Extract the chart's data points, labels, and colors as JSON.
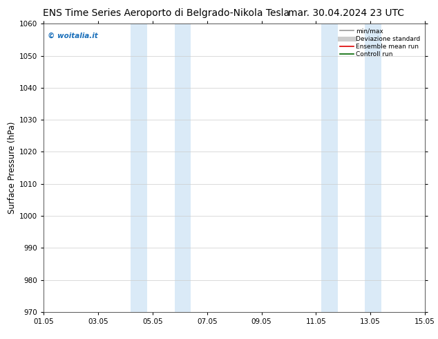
{
  "title_left": "ENS Time Series Aeroporto di Belgrado-Nikola Tesla",
  "title_right": "mar. 30.04.2024 23 UTC",
  "ylabel": "Surface Pressure (hPa)",
  "ylim": [
    970,
    1060
  ],
  "yticks": [
    970,
    980,
    990,
    1000,
    1010,
    1020,
    1030,
    1040,
    1050,
    1060
  ],
  "xlim": [
    0,
    14
  ],
  "xtick_positions": [
    0,
    2,
    4,
    6,
    8,
    10,
    12,
    14
  ],
  "xtick_labels": [
    "01.05",
    "03.05",
    "05.05",
    "07.05",
    "09.05",
    "11.05",
    "13.05",
    "15.05"
  ],
  "shade_bands": [
    {
      "xmin": 3.2,
      "xmax": 3.8
    },
    {
      "xmin": 4.8,
      "xmax": 5.4
    },
    {
      "xmin": 10.2,
      "xmax": 10.8
    },
    {
      "xmin": 11.8,
      "xmax": 12.4
    }
  ],
  "shade_color": "#daeaf7",
  "watermark": "© woitalia.it",
  "watermark_color": "#1a6fba",
  "legend_items": [
    {
      "label": "min/max",
      "color": "#999999",
      "lw": 1.2
    },
    {
      "label": "Deviazione standard",
      "color": "#cccccc",
      "lw": 5
    },
    {
      "label": "Ensemble mean run",
      "color": "#dd0000",
      "lw": 1.2
    },
    {
      "label": "Controll run",
      "color": "#006600",
      "lw": 1.2
    }
  ],
  "bg_color": "#ffffff",
  "title_fontsize": 10,
  "tick_fontsize": 7.5,
  "ylabel_fontsize": 8.5
}
